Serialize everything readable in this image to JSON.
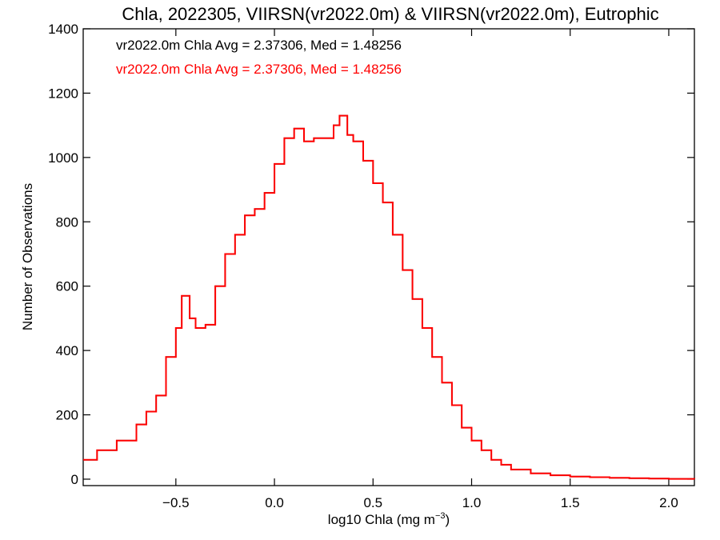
{
  "chart_data": {
    "type": "line",
    "title": "Chla, 2022305, VIIRSN(vr2022.0m) & VIIRSN(vr2022.0m), Eutrophic",
    "xlabel": "log10 Chla (mg m",
    "xlabel_unit_superscript": "−3",
    "xlabel_close": ")",
    "ylabel": "Number of Observations",
    "xlim": [
      -0.97,
      2.13
    ],
    "ylim": [
      -20,
      1400
    ],
    "x_ticks": [
      -0.5,
      0.0,
      0.5,
      1.0,
      1.5,
      2.0
    ],
    "x_tick_labels": [
      "−0.5",
      "0.0",
      "0.5",
      "1.0",
      "1.5",
      "2.0"
    ],
    "y_ticks": [
      0,
      200,
      400,
      600,
      800,
      1000,
      1200,
      1400
    ],
    "y_tick_labels": [
      "0",
      "200",
      "400",
      "600",
      "800",
      "1000",
      "1200",
      "1400"
    ],
    "grid": false,
    "legend_placement": "top-left",
    "series": [
      {
        "name": "vr2022.0m Chla Avg = 2.37306, Med = 1.48256",
        "color": "#000000",
        "x": [
          -0.97,
          -0.9,
          -0.8,
          -0.7,
          -0.65,
          -0.6,
          -0.55,
          -0.5,
          -0.47,
          -0.43,
          -0.4,
          -0.35,
          -0.3,
          -0.25,
          -0.2,
          -0.15,
          -0.1,
          -0.05,
          0.0,
          0.05,
          0.1,
          0.15,
          0.2,
          0.25,
          0.3,
          0.33,
          0.37,
          0.4,
          0.45,
          0.5,
          0.55,
          0.6,
          0.65,
          0.7,
          0.75,
          0.8,
          0.85,
          0.9,
          0.95,
          1.0,
          1.05,
          1.1,
          1.15,
          1.2,
          1.3,
          1.4,
          1.5,
          1.6,
          1.7,
          1.8,
          1.9,
          2.0,
          2.13
        ],
        "values": [
          60,
          90,
          120,
          170,
          210,
          260,
          380,
          470,
          570,
          500,
          470,
          480,
          600,
          700,
          760,
          820,
          840,
          890,
          980,
          1060,
          1090,
          1050,
          1060,
          1060,
          1100,
          1130,
          1070,
          1050,
          990,
          920,
          860,
          760,
          650,
          560,
          470,
          380,
          300,
          230,
          160,
          120,
          90,
          60,
          45,
          30,
          18,
          12,
          8,
          6,
          4,
          3,
          2,
          1,
          0
        ]
      },
      {
        "name": "vr2022.0m Chla Avg = 2.37306, Med = 1.48256",
        "color": "#ff0000",
        "x": [
          -0.97,
          -0.9,
          -0.8,
          -0.7,
          -0.65,
          -0.6,
          -0.55,
          -0.5,
          -0.47,
          -0.43,
          -0.4,
          -0.35,
          -0.3,
          -0.25,
          -0.2,
          -0.15,
          -0.1,
          -0.05,
          0.0,
          0.05,
          0.1,
          0.15,
          0.2,
          0.25,
          0.3,
          0.33,
          0.37,
          0.4,
          0.45,
          0.5,
          0.55,
          0.6,
          0.65,
          0.7,
          0.75,
          0.8,
          0.85,
          0.9,
          0.95,
          1.0,
          1.05,
          1.1,
          1.15,
          1.2,
          1.3,
          1.4,
          1.5,
          1.6,
          1.7,
          1.8,
          1.9,
          2.0,
          2.13
        ],
        "values": [
          60,
          90,
          120,
          170,
          210,
          260,
          380,
          470,
          570,
          500,
          470,
          480,
          600,
          700,
          760,
          820,
          840,
          890,
          980,
          1060,
          1090,
          1050,
          1060,
          1060,
          1100,
          1130,
          1070,
          1050,
          990,
          920,
          860,
          760,
          650,
          560,
          470,
          380,
          300,
          230,
          160,
          120,
          90,
          60,
          45,
          30,
          18,
          12,
          8,
          6,
          4,
          3,
          2,
          1,
          0
        ]
      }
    ]
  }
}
